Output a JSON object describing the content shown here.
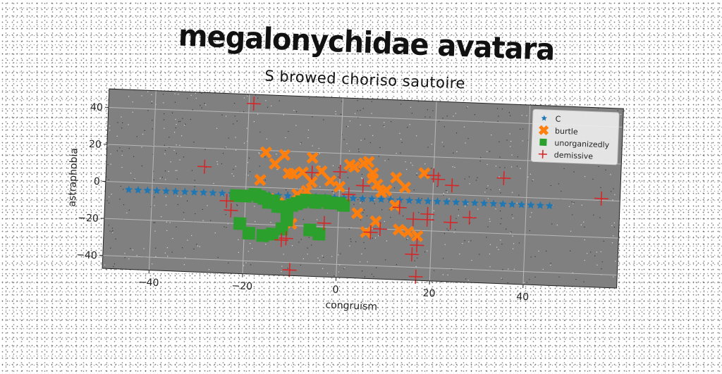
{
  "chart_data": {
    "type": "scatter",
    "title": "megalonychidae avatara",
    "subtitle": "S browed choriso sautoire",
    "xlabel": "congruism",
    "ylabel": "astraphobia",
    "xlim": [
      -50,
      60
    ],
    "ylim": [
      -47,
      50
    ],
    "xticks": [
      -40,
      -20,
      0,
      20,
      40
    ],
    "yticks": [
      -40,
      -20,
      0,
      20,
      40
    ],
    "grid": true,
    "legend_position": "top-right",
    "colors": {
      "plot_bg": "#808080",
      "C": "#1f77b4",
      "burtle": "#ff7f0e",
      "unorganizedly": "#2ca02c",
      "demissive": "#d62728"
    },
    "series": [
      {
        "name": "C",
        "marker": "star",
        "x": [
          -45,
          -43,
          -41,
          -39,
          -37,
          -35,
          -33,
          -31,
          -29,
          -27,
          -25,
          -23,
          -21,
          -19,
          -17,
          -15,
          -13,
          -11,
          -9,
          -7,
          -5,
          -3,
          -1,
          1,
          3,
          5,
          7,
          9,
          11,
          13,
          15,
          17,
          19,
          21,
          23,
          25,
          27,
          29,
          31,
          33,
          35,
          37,
          39,
          41,
          43,
          45
        ],
        "y": [
          -4,
          -4,
          -4,
          -4,
          -4,
          -4,
          -4,
          -4,
          -4,
          -4,
          -4,
          -4,
          -4,
          -4,
          -4,
          -4,
          -4,
          -4,
          -4,
          -4,
          -4,
          -4,
          -4,
          -4,
          -4,
          -4,
          -4,
          -4,
          -4,
          -4,
          -4,
          -4,
          -4,
          -4,
          -4,
          -4,
          -4,
          -4,
          -4,
          -4,
          -4,
          -4,
          -4,
          -4,
          -4,
          -4
        ]
      },
      {
        "name": "burtle",
        "marker": "x-filled",
        "x": [
          -16,
          -14,
          -12,
          -10,
          -8,
          -6,
          -4,
          -2,
          0,
          2,
          3,
          5,
          6,
          7,
          8,
          10,
          12,
          14,
          -11,
          -13,
          -9,
          -7,
          -6,
          4,
          6,
          8,
          9,
          12,
          13,
          15,
          17,
          -17,
          -15,
          -10,
          7,
          18
        ],
        "y": [
          19,
          13,
          18,
          8,
          9,
          17,
          10,
          5,
          2,
          14,
          13,
          15,
          16,
          10,
          4,
          1,
          8,
          3,
          8,
          -8,
          -3,
          -1,
          4,
          -12,
          -22,
          -16,
          0,
          -7,
          -20,
          -21,
          -23,
          4,
          -6,
          -19,
          7,
          11
        ]
      },
      {
        "name": "unorganizedly",
        "marker": "square",
        "x": [
          -22,
          -20,
          -18,
          -17,
          -16,
          -15,
          -14,
          -13,
          -12,
          -11,
          -10,
          -9,
          -8,
          -7,
          -6,
          -5,
          -4,
          -3,
          -2,
          -1,
          0,
          1,
          -21,
          -19,
          -16,
          -14,
          -12,
          -11,
          -6,
          -4
        ],
        "y": [
          -5,
          -5,
          -4,
          -5,
          -6,
          -8,
          -7,
          -10,
          -10,
          -11,
          -9,
          -8,
          -7,
          -6,
          -6,
          -7,
          -6,
          -6,
          -7,
          -7,
          -7,
          -8,
          -20,
          -25,
          -26,
          -25,
          -22,
          -17,
          -22,
          -24
        ],
        "y_note": ""
      },
      {
        "name": "demissive",
        "marker": "plus",
        "x": [
          -19,
          -29,
          -24,
          -23,
          -12,
          -6,
          0,
          5,
          7,
          9,
          13,
          16,
          17,
          19,
          20,
          21,
          24,
          24,
          28,
          35,
          56,
          -10,
          -11,
          16,
          17,
          -3,
          2,
          19
        ],
        "y": [
          45,
          10,
          -8,
          -13,
          -28,
          9,
          10,
          3,
          -22,
          -20,
          -8,
          -14,
          -45,
          -14,
          10,
          8,
          5,
          -15,
          -12,
          10,
          1,
          -44,
          -27,
          -33,
          -28,
          -18,
          -2,
          -11
        ]
      }
    ]
  }
}
